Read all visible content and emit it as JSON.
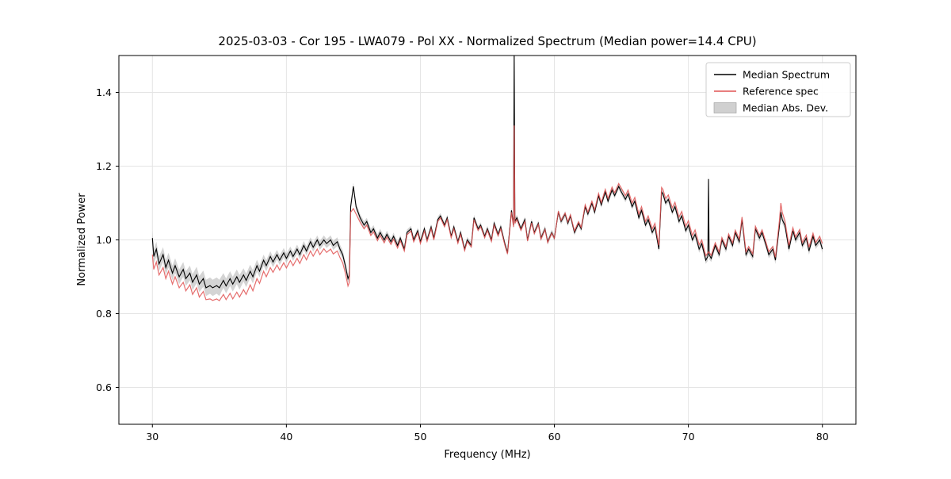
{
  "chart_data": {
    "type": "line",
    "title": "2025-03-03 - Cor 195 - LWA079 - Pol XX - Normalized Spectrum (Median power=14.4 CPU)",
    "xlabel": "Frequency (MHz)",
    "ylabel": "Normalized Power",
    "xlim": [
      27.5,
      82.5
    ],
    "ylim": [
      0.5,
      1.5
    ],
    "xticks": [
      30,
      40,
      50,
      60,
      70,
      80
    ],
    "yticks": [
      0.6,
      0.8,
      1.0,
      1.2,
      1.4
    ],
    "grid": true,
    "legend_position": "upper right",
    "colors": {
      "median": "#000000",
      "reference": "#e05353",
      "mad_band": "#b0b0b0",
      "grid": "#e4e4e4",
      "spine": "#000000"
    },
    "series": [
      {
        "name": "Median Spectrum",
        "column": 1,
        "color_key": "median"
      },
      {
        "name": "Reference spec",
        "column": 2,
        "color_key": "reference"
      }
    ],
    "band": {
      "name": "Median Abs. Dev.",
      "center_column": 1,
      "half_width_column": 3,
      "color_key": "mad_band"
    },
    "columns": [
      "freq_mhz",
      "median",
      "reference",
      "mad"
    ],
    "points": [
      [
        30.0,
        1.005,
        0.96,
        0.02
      ],
      [
        30.1,
        0.955,
        0.92,
        0.02
      ],
      [
        30.3,
        0.975,
        0.94,
        0.02
      ],
      [
        30.5,
        0.935,
        0.905,
        0.02
      ],
      [
        30.8,
        0.96,
        0.925,
        0.02
      ],
      [
        31.0,
        0.925,
        0.895,
        0.02
      ],
      [
        31.2,
        0.945,
        0.915,
        0.02
      ],
      [
        31.5,
        0.91,
        0.88,
        0.02
      ],
      [
        31.7,
        0.93,
        0.9,
        0.02
      ],
      [
        32.0,
        0.9,
        0.87,
        0.02
      ],
      [
        32.3,
        0.92,
        0.885,
        0.02
      ],
      [
        32.5,
        0.895,
        0.862,
        0.02
      ],
      [
        32.8,
        0.91,
        0.878,
        0.02
      ],
      [
        33.0,
        0.885,
        0.852,
        0.022
      ],
      [
        33.3,
        0.905,
        0.87,
        0.022
      ],
      [
        33.5,
        0.88,
        0.845,
        0.022
      ],
      [
        33.8,
        0.895,
        0.86,
        0.022
      ],
      [
        34.0,
        0.87,
        0.838,
        0.022
      ],
      [
        34.3,
        0.876,
        0.84,
        0.022
      ],
      [
        34.5,
        0.87,
        0.836,
        0.022
      ],
      [
        34.8,
        0.876,
        0.84,
        0.022
      ],
      [
        35.0,
        0.87,
        0.835,
        0.022
      ],
      [
        35.3,
        0.89,
        0.852,
        0.02
      ],
      [
        35.5,
        0.875,
        0.838,
        0.02
      ],
      [
        35.8,
        0.895,
        0.855,
        0.02
      ],
      [
        36.0,
        0.88,
        0.84,
        0.02
      ],
      [
        36.3,
        0.9,
        0.858,
        0.02
      ],
      [
        36.5,
        0.885,
        0.845,
        0.02
      ],
      [
        36.8,
        0.905,
        0.865,
        0.018
      ],
      [
        37.0,
        0.89,
        0.852,
        0.018
      ],
      [
        37.3,
        0.915,
        0.878,
        0.018
      ],
      [
        37.5,
        0.9,
        0.862,
        0.018
      ],
      [
        37.8,
        0.93,
        0.895,
        0.016
      ],
      [
        38.0,
        0.915,
        0.882,
        0.016
      ],
      [
        38.3,
        0.945,
        0.915,
        0.015
      ],
      [
        38.5,
        0.93,
        0.9,
        0.015
      ],
      [
        38.8,
        0.955,
        0.925,
        0.014
      ],
      [
        39.0,
        0.94,
        0.912,
        0.014
      ],
      [
        39.3,
        0.96,
        0.932,
        0.013
      ],
      [
        39.5,
        0.945,
        0.918,
        0.013
      ],
      [
        39.8,
        0.965,
        0.938,
        0.013
      ],
      [
        40.0,
        0.95,
        0.924,
        0.013
      ],
      [
        40.3,
        0.97,
        0.944,
        0.012
      ],
      [
        40.5,
        0.955,
        0.93,
        0.012
      ],
      [
        40.8,
        0.975,
        0.95,
        0.012
      ],
      [
        41.0,
        0.96,
        0.936,
        0.012
      ],
      [
        41.3,
        0.985,
        0.96,
        0.012
      ],
      [
        41.5,
        0.97,
        0.946,
        0.012
      ],
      [
        41.8,
        0.995,
        0.97,
        0.012
      ],
      [
        42.0,
        0.98,
        0.956,
        0.012
      ],
      [
        42.3,
        1.0,
        0.975,
        0.012
      ],
      [
        42.5,
        0.985,
        0.96,
        0.012
      ],
      [
        42.8,
        1.0,
        0.976,
        0.012
      ],
      [
        43.0,
        0.99,
        0.966,
        0.012
      ],
      [
        43.3,
        1.0,
        0.975,
        0.012
      ],
      [
        43.5,
        0.985,
        0.962,
        0.012
      ],
      [
        43.8,
        0.995,
        0.97,
        0.012
      ],
      [
        44.0,
        0.975,
        0.952,
        0.012
      ],
      [
        44.2,
        0.96,
        0.938,
        0.012
      ],
      [
        44.4,
        0.93,
        0.91,
        0.012
      ],
      [
        44.6,
        0.895,
        0.875,
        0.012
      ],
      [
        44.7,
        0.905,
        0.885,
        0.012
      ],
      [
        44.8,
        1.09,
        1.075,
        0.01
      ],
      [
        45.0,
        1.145,
        1.085,
        0.01
      ],
      [
        45.2,
        1.09,
        1.07,
        0.01
      ],
      [
        45.5,
        1.06,
        1.048,
        0.01
      ],
      [
        45.8,
        1.04,
        1.03,
        0.01
      ],
      [
        46.0,
        1.05,
        1.04,
        0.01
      ],
      [
        46.3,
        1.02,
        1.012,
        0.01
      ],
      [
        46.5,
        1.03,
        1.022,
        0.01
      ],
      [
        46.8,
        1.005,
        0.998,
        0.01
      ],
      [
        47.0,
        1.02,
        1.012,
        0.01
      ],
      [
        47.3,
        1.0,
        0.992,
        0.01
      ],
      [
        47.5,
        1.015,
        1.008,
        0.01
      ],
      [
        47.8,
        0.995,
        0.988,
        0.01
      ],
      [
        48.0,
        1.01,
        1.002,
        0.01
      ],
      [
        48.3,
        0.985,
        0.978,
        0.01
      ],
      [
        48.5,
        1.005,
        0.998,
        0.008
      ],
      [
        48.8,
        0.975,
        0.97,
        0.008
      ],
      [
        49.0,
        1.02,
        1.014,
        0.008
      ],
      [
        49.3,
        1.03,
        1.024,
        0.008
      ],
      [
        49.5,
        1.0,
        0.995,
        0.008
      ],
      [
        49.8,
        1.025,
        1.019,
        0.008
      ],
      [
        50.0,
        0.995,
        0.99,
        0.008
      ],
      [
        50.3,
        1.03,
        1.024,
        0.008
      ],
      [
        50.5,
        1.0,
        0.996,
        0.008
      ],
      [
        50.8,
        1.035,
        1.03,
        0.008
      ],
      [
        51.0,
        1.005,
        1.0,
        0.008
      ],
      [
        51.3,
        1.055,
        1.05,
        0.008
      ],
      [
        51.5,
        1.065,
        1.06,
        0.008
      ],
      [
        51.8,
        1.04,
        1.036,
        0.008
      ],
      [
        52.0,
        1.06,
        1.055,
        0.008
      ],
      [
        52.3,
        1.01,
        1.006,
        0.008
      ],
      [
        52.5,
        1.035,
        1.03,
        0.008
      ],
      [
        52.8,
        0.995,
        0.991,
        0.008
      ],
      [
        53.0,
        1.02,
        1.015,
        0.008
      ],
      [
        53.3,
        0.975,
        0.971,
        0.008
      ],
      [
        53.5,
        1.0,
        0.996,
        0.008
      ],
      [
        53.8,
        0.985,
        0.981,
        0.008
      ],
      [
        54.0,
        1.06,
        1.055,
        0.008
      ],
      [
        54.3,
        1.03,
        1.026,
        0.008
      ],
      [
        54.5,
        1.04,
        1.036,
        0.008
      ],
      [
        54.8,
        1.01,
        1.006,
        0.008
      ],
      [
        55.0,
        1.03,
        1.026,
        0.008
      ],
      [
        55.3,
        1.0,
        0.996,
        0.008
      ],
      [
        55.5,
        1.045,
        1.04,
        0.008
      ],
      [
        55.8,
        1.015,
        1.011,
        0.008
      ],
      [
        56.0,
        1.035,
        1.03,
        0.008
      ],
      [
        56.3,
        0.99,
        0.986,
        0.008
      ],
      [
        56.5,
        0.965,
        0.962,
        0.008
      ],
      [
        56.8,
        1.08,
        1.075,
        0.008
      ],
      [
        56.95,
        1.04,
        1.035,
        0.01
      ],
      [
        57.0,
        1.52,
        1.31,
        0.05
      ],
      [
        57.05,
        1.05,
        1.045,
        0.01
      ],
      [
        57.2,
        1.06,
        1.055,
        0.008
      ],
      [
        57.5,
        1.03,
        1.026,
        0.008
      ],
      [
        57.8,
        1.055,
        1.05,
        0.008
      ],
      [
        58.0,
        1.0,
        0.997,
        0.008
      ],
      [
        58.3,
        1.05,
        1.046,
        0.008
      ],
      [
        58.5,
        1.02,
        1.017,
        0.008
      ],
      [
        58.8,
        1.045,
        1.042,
        0.008
      ],
      [
        59.0,
        1.005,
        1.002,
        0.008
      ],
      [
        59.3,
        1.03,
        1.028,
        0.008
      ],
      [
        59.5,
        0.995,
        0.993,
        0.008
      ],
      [
        59.8,
        1.02,
        1.018,
        0.008
      ],
      [
        60.0,
        1.005,
        1.004,
        0.008
      ],
      [
        60.3,
        1.075,
        1.078,
        0.008
      ],
      [
        60.5,
        1.05,
        1.053,
        0.008
      ],
      [
        60.8,
        1.07,
        1.073,
        0.008
      ],
      [
        61.0,
        1.045,
        1.049,
        0.008
      ],
      [
        61.2,
        1.065,
        1.068,
        0.008
      ],
      [
        61.5,
        1.02,
        1.024,
        0.008
      ],
      [
        61.8,
        1.045,
        1.049,
        0.008
      ],
      [
        62.0,
        1.03,
        1.034,
        0.008
      ],
      [
        62.3,
        1.09,
        1.095,
        0.008
      ],
      [
        62.5,
        1.07,
        1.075,
        0.008
      ],
      [
        62.8,
        1.1,
        1.105,
        0.008
      ],
      [
        63.0,
        1.075,
        1.081,
        0.008
      ],
      [
        63.3,
        1.12,
        1.126,
        0.008
      ],
      [
        63.5,
        1.095,
        1.101,
        0.008
      ],
      [
        63.8,
        1.13,
        1.137,
        0.008
      ],
      [
        64.0,
        1.105,
        1.112,
        0.008
      ],
      [
        64.3,
        1.135,
        1.143,
        0.008
      ],
      [
        64.5,
        1.12,
        1.128,
        0.008
      ],
      [
        64.8,
        1.145,
        1.153,
        0.008
      ],
      [
        65.0,
        1.13,
        1.14,
        0.008
      ],
      [
        65.3,
        1.11,
        1.12,
        0.008
      ],
      [
        65.5,
        1.125,
        1.135,
        0.008
      ],
      [
        65.8,
        1.09,
        1.1,
        0.008
      ],
      [
        66.0,
        1.105,
        1.115,
        0.008
      ],
      [
        66.3,
        1.06,
        1.07,
        0.008
      ],
      [
        66.5,
        1.08,
        1.09,
        0.008
      ],
      [
        66.8,
        1.04,
        1.05,
        0.008
      ],
      [
        67.0,
        1.055,
        1.065,
        0.008
      ],
      [
        67.3,
        1.02,
        1.03,
        0.008
      ],
      [
        67.5,
        1.035,
        1.045,
        0.008
      ],
      [
        67.8,
        0.975,
        0.985,
        0.008
      ],
      [
        68.0,
        1.13,
        1.142,
        0.008
      ],
      [
        68.1,
        1.125,
        1.137,
        0.008
      ],
      [
        68.3,
        1.1,
        1.112,
        0.008
      ],
      [
        68.5,
        1.11,
        1.122,
        0.008
      ],
      [
        68.8,
        1.075,
        1.087,
        0.008
      ],
      [
        69.0,
        1.09,
        1.102,
        0.008
      ],
      [
        69.3,
        1.05,
        1.062,
        0.008
      ],
      [
        69.5,
        1.065,
        1.077,
        0.008
      ],
      [
        69.8,
        1.025,
        1.037,
        0.008
      ],
      [
        70.0,
        1.04,
        1.052,
        0.008
      ],
      [
        70.3,
        1.0,
        1.012,
        0.008
      ],
      [
        70.5,
        1.015,
        1.027,
        0.008
      ],
      [
        70.8,
        0.975,
        0.987,
        0.01
      ],
      [
        71.0,
        0.99,
        1.0,
        0.01
      ],
      [
        71.3,
        0.945,
        0.957,
        0.01
      ],
      [
        71.45,
        0.955,
        0.965,
        0.012
      ],
      [
        71.5,
        1.165,
        0.968,
        0.028
      ],
      [
        71.55,
        0.96,
        0.966,
        0.012
      ],
      [
        71.7,
        0.95,
        0.958,
        0.01
      ],
      [
        72.0,
        0.985,
        0.992,
        0.01
      ],
      [
        72.3,
        0.96,
        0.967,
        0.01
      ],
      [
        72.5,
        1.0,
        1.006,
        0.01
      ],
      [
        72.8,
        0.975,
        0.982,
        0.01
      ],
      [
        73.0,
        1.01,
        1.016,
        0.01
      ],
      [
        73.3,
        0.985,
        0.992,
        0.01
      ],
      [
        73.5,
        1.02,
        1.026,
        0.01
      ],
      [
        73.8,
        0.995,
        1.002,
        0.01
      ],
      [
        74.0,
        1.055,
        1.062,
        0.01
      ],
      [
        74.3,
        0.96,
        0.968,
        0.01
      ],
      [
        74.5,
        0.975,
        0.982,
        0.01
      ],
      [
        74.8,
        0.955,
        0.962,
        0.01
      ],
      [
        75.0,
        1.03,
        1.037,
        0.01
      ],
      [
        75.3,
        1.005,
        1.012,
        0.01
      ],
      [
        75.5,
        1.02,
        1.027,
        0.01
      ],
      [
        75.8,
        0.985,
        0.992,
        0.01
      ],
      [
        76.0,
        0.96,
        0.968,
        0.01
      ],
      [
        76.3,
        0.975,
        0.982,
        0.01
      ],
      [
        76.5,
        0.945,
        0.953,
        0.01
      ],
      [
        76.8,
        1.04,
        1.055,
        0.01
      ],
      [
        76.9,
        1.075,
        1.1,
        0.01
      ],
      [
        77.0,
        1.055,
        1.075,
        0.01
      ],
      [
        77.2,
        1.04,
        1.052,
        0.01
      ],
      [
        77.5,
        0.975,
        0.985,
        0.01
      ],
      [
        77.8,
        1.025,
        1.033,
        0.01
      ],
      [
        78.0,
        1.0,
        1.008,
        0.01
      ],
      [
        78.3,
        1.02,
        1.028,
        0.01
      ],
      [
        78.5,
        0.985,
        0.993,
        0.01
      ],
      [
        78.8,
        1.005,
        1.013,
        0.01
      ],
      [
        79.0,
        0.97,
        0.98,
        0.01
      ],
      [
        79.3,
        1.01,
        1.018,
        0.01
      ],
      [
        79.5,
        0.985,
        0.993,
        0.01
      ],
      [
        79.8,
        1.0,
        1.01,
        0.01
      ],
      [
        80.0,
        0.975,
        0.99,
        0.01
      ]
    ]
  }
}
